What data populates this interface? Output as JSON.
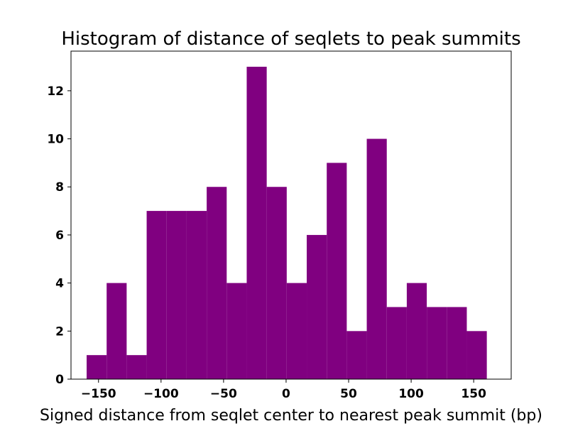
{
  "chart_data": {
    "type": "bar",
    "subtype": "histogram",
    "title": "Histogram of distance of seqlets to peak summits",
    "xlabel": "Signed distance from seqlet center to nearest peak summit (bp)",
    "ylabel": "",
    "bin_edges": [
      -159.5,
      -143.5,
      -127.5,
      -111.5,
      -95.5,
      -79.5,
      -63.5,
      -47.5,
      -31.5,
      -15.5,
      0.5,
      16.5,
      32.5,
      48.5,
      64.5,
      80.5,
      96.5,
      112.5,
      128.5,
      144.5,
      160.5
    ],
    "values": [
      1,
      4,
      1,
      7,
      7,
      7,
      8,
      4,
      13,
      8,
      4,
      6,
      9,
      2,
      10,
      3,
      4,
      3,
      3,
      2
    ],
    "xlim": [
      -172,
      180
    ],
    "ylim": [
      0,
      13.65
    ],
    "xticks": [
      -150,
      -100,
      -50,
      0,
      50,
      100,
      150
    ],
    "xtick_labels": [
      "−150",
      "−100",
      "−50",
      "0",
      "50",
      "100",
      "150"
    ],
    "yticks": [
      0,
      2,
      4,
      6,
      8,
      10,
      12
    ],
    "ytick_labels": [
      "0",
      "2",
      "4",
      "6",
      "8",
      "10",
      "12"
    ],
    "bar_color": "#800080",
    "grid": false,
    "legend": "none"
  }
}
